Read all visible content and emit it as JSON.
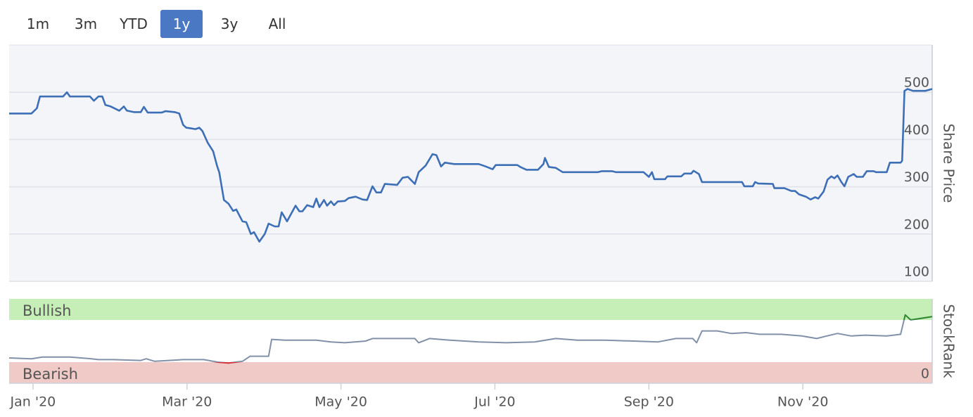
{
  "range_buttons": {
    "options": [
      "1m",
      "3m",
      "YTD",
      "1y",
      "3y",
      "All"
    ],
    "selected": 3
  },
  "chart_data": [
    {
      "type": "line",
      "y_label": "Share Price",
      "color": "#3d6fb6",
      "background": "#f4f5f9",
      "grid": true,
      "xlim": [
        -0.31,
        11.68
      ],
      "ylim": [
        100,
        600
      ],
      "yticks": [
        100,
        200,
        300,
        400,
        500
      ],
      "x": [
        -0.31,
        -0.02,
        0.05,
        0.09,
        0.39,
        0.44,
        0.48,
        0.74,
        0.79,
        0.85,
        0.9,
        0.94,
        1.01,
        1.12,
        1.18,
        1.22,
        1.31,
        1.4,
        1.44,
        1.49,
        1.67,
        1.72,
        1.84,
        1.9,
        1.95,
        1.99,
        2.04,
        2.11,
        2.16,
        2.2,
        2.27,
        2.34,
        2.39,
        2.42,
        2.48,
        2.54,
        2.6,
        2.64,
        2.72,
        2.77,
        2.83,
        2.87,
        2.94,
        3.01,
        3.06,
        3.14,
        3.19,
        3.23,
        3.3,
        3.41,
        3.46,
        3.5,
        3.56,
        3.64,
        3.68,
        3.72,
        3.78,
        3.82,
        3.87,
        3.91,
        3.96,
        4.05,
        4.1,
        4.19,
        4.28,
        4.34,
        4.41,
        4.46,
        4.52,
        4.57,
        4.73,
        4.8,
        4.87,
        4.96,
        5.01,
        5.1,
        5.19,
        5.24,
        5.3,
        5.35,
        5.47,
        5.79,
        5.88,
        5.97,
        6.01,
        6.29,
        6.33,
        6.41,
        6.56,
        6.63,
        6.65,
        6.7,
        6.79,
        6.88,
        7.34,
        7.39,
        7.52,
        7.57,
        7.93,
        8.0,
        8.04,
        8.07,
        8.21,
        8.24,
        8.42,
        8.46,
        8.55,
        8.58,
        8.65,
        8.69,
        9.21,
        9.24,
        9.35,
        9.38,
        9.42,
        9.61,
        9.63,
        9.76,
        9.85,
        9.9,
        9.95,
        10.04,
        10.1,
        10.16,
        10.2,
        10.27,
        10.32,
        10.37,
        10.41,
        10.45,
        10.5,
        10.54,
        10.59,
        10.66,
        10.7,
        10.78,
        10.83,
        10.92,
        10.95,
        11.09,
        11.13,
        11.27,
        11.29,
        11.32,
        11.36,
        11.43,
        11.59,
        11.68
      ],
      "values": [
        455,
        455,
        466,
        491,
        491,
        500,
        491,
        491,
        482,
        491,
        491,
        473,
        470,
        461,
        470,
        461,
        458,
        458,
        469,
        457,
        457,
        460,
        458,
        455,
        431,
        425,
        424,
        422,
        425,
        418,
        393,
        375,
        345,
        330,
        272,
        264,
        249,
        252,
        227,
        225,
        200,
        204,
        184,
        200,
        222,
        216,
        216,
        246,
        227,
        260,
        248,
        248,
        261,
        257,
        275,
        257,
        272,
        260,
        269,
        261,
        269,
        270,
        276,
        279,
        273,
        272,
        301,
        288,
        288,
        306,
        304,
        319,
        321,
        306,
        331,
        345,
        369,
        367,
        343,
        351,
        348,
        348,
        343,
        337,
        346,
        346,
        342,
        336,
        336,
        348,
        361,
        342,
        340,
        331,
        331,
        333,
        333,
        331,
        331,
        321,
        331,
        316,
        316,
        322,
        322,
        328,
        328,
        334,
        327,
        310,
        310,
        301,
        301,
        310,
        307,
        306,
        297,
        297,
        291,
        291,
        284,
        279,
        273,
        278,
        275,
        290,
        315,
        322,
        318,
        324,
        310,
        301,
        321,
        327,
        321,
        321,
        333,
        333,
        331,
        331,
        351,
        351,
        355,
        503,
        507,
        503,
        503,
        507
      ]
    },
    {
      "type": "line",
      "y_label": "StockRank",
      "color": "#8290a8",
      "high_color": "#2e8b2e",
      "low_color": "#d8323c",
      "xlim": [
        -0.31,
        11.68
      ],
      "ylim": [
        0,
        100
      ],
      "yticks": [
        0
      ],
      "xticks": [
        {
          "value": 0,
          "label": "Jan '20"
        },
        {
          "value": 2,
          "label": "Mar '20"
        },
        {
          "value": 4,
          "label": "May '20"
        },
        {
          "value": 6,
          "label": "Jul '20"
        },
        {
          "value": 8,
          "label": "Sep '20"
        },
        {
          "value": 10,
          "label": "Nov '20"
        }
      ],
      "bands": [
        {
          "label": "Bullish",
          "range": [
            75,
            100
          ],
          "color": "#c5efb6",
          "text_color": "#2e8b2e"
        },
        {
          "label": "Bearish",
          "range": [
            0,
            25
          ],
          "color": "#efcac6",
          "text_color": "#d8323c"
        }
      ],
      "x": [
        -0.31,
        -0.02,
        0.12,
        0.48,
        0.76,
        0.85,
        1.04,
        1.4,
        1.47,
        1.58,
        1.95,
        2.22,
        2.4,
        2.54,
        2.72,
        2.82,
        3.0,
        3.06,
        3.1,
        3.27,
        3.46,
        3.68,
        3.87,
        4.05,
        4.32,
        4.41,
        4.69,
        4.96,
        5.01,
        5.15,
        5.42,
        5.79,
        6.15,
        6.52,
        6.79,
        7.07,
        7.43,
        7.8,
        8.12,
        8.35,
        8.57,
        8.62,
        8.69,
        8.89,
        9.07,
        9.26,
        9.44,
        9.72,
        9.99,
        10.18,
        10.31,
        10.45,
        10.63,
        10.81,
        11.09,
        11.27,
        11.33,
        11.4,
        11.54,
        11.68
      ],
      "values": [
        30,
        29,
        31,
        31,
        29,
        28,
        28,
        27,
        29,
        26,
        28,
        28,
        25,
        24,
        26,
        32,
        32,
        32,
        52,
        51,
        51,
        51,
        49,
        48,
        50,
        53,
        53,
        53,
        48,
        53,
        51,
        49,
        48,
        49,
        53,
        51,
        51,
        50,
        49,
        53,
        53,
        48,
        62,
        62,
        59,
        60,
        58,
        58,
        56,
        53,
        56,
        59,
        56,
        57,
        56,
        58,
        81,
        75,
        77,
        79
      ]
    }
  ]
}
